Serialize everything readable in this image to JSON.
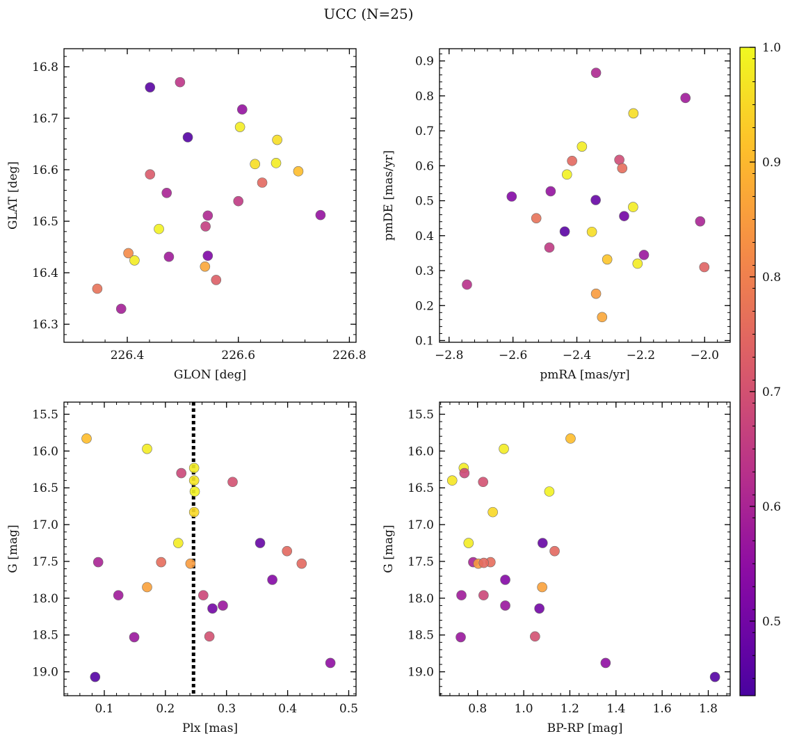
{
  "figure_title": "UCC (N=25)",
  "colorbar": {
    "min": 0.435,
    "max": 1.0,
    "ticks": [
      0.5,
      0.6,
      0.7,
      0.8,
      0.9,
      1.0
    ],
    "tick_labels": [
      "0.5",
      "0.6",
      "0.7",
      "0.8",
      "0.9",
      "1.0"
    ],
    "colormap": "plasma"
  },
  "chart_data": [
    {
      "type": "scatter",
      "xlabel": "GLON [deg]",
      "ylabel": "GLAT [deg]",
      "xlim": [
        226.286,
        226.812
      ],
      "ylim": [
        16.265,
        16.835
      ],
      "xticks": [
        226.4,
        226.6,
        226.8
      ],
      "xtick_labels": [
        "226.4",
        "226.6",
        "226.8"
      ],
      "yticks": [
        16.3,
        16.4,
        16.5,
        16.6,
        16.7,
        16.8
      ],
      "ytick_labels": [
        "16.3",
        "16.4",
        "16.5",
        "16.6",
        "16.7",
        "16.8"
      ],
      "points": [
        {
          "x": 226.441,
          "y": 16.76,
          "c": 0.46
        },
        {
          "x": 226.495,
          "y": 16.77,
          "c": 0.64
        },
        {
          "x": 226.607,
          "y": 16.717,
          "c": 0.56
        },
        {
          "x": 226.509,
          "y": 16.663,
          "c": 0.45
        },
        {
          "x": 226.603,
          "y": 16.683,
          "c": 0.98
        },
        {
          "x": 226.67,
          "y": 16.658,
          "c": 0.96
        },
        {
          "x": 226.63,
          "y": 16.611,
          "c": 0.96
        },
        {
          "x": 226.668,
          "y": 16.613,
          "c": 0.98
        },
        {
          "x": 226.708,
          "y": 16.597,
          "c": 0.91
        },
        {
          "x": 226.441,
          "y": 16.591,
          "c": 0.72
        },
        {
          "x": 226.643,
          "y": 16.575,
          "c": 0.75
        },
        {
          "x": 226.471,
          "y": 16.555,
          "c": 0.6
        },
        {
          "x": 226.6,
          "y": 16.539,
          "c": 0.65
        },
        {
          "x": 226.545,
          "y": 16.511,
          "c": 0.61
        },
        {
          "x": 226.748,
          "y": 16.512,
          "c": 0.56
        },
        {
          "x": 226.541,
          "y": 16.49,
          "c": 0.66
        },
        {
          "x": 226.457,
          "y": 16.485,
          "c": 0.99
        },
        {
          "x": 226.402,
          "y": 16.438,
          "c": 0.82
        },
        {
          "x": 226.545,
          "y": 16.433,
          "c": 0.52
        },
        {
          "x": 226.475,
          "y": 16.431,
          "c": 0.58
        },
        {
          "x": 226.413,
          "y": 16.424,
          "c": 0.98
        },
        {
          "x": 226.54,
          "y": 16.412,
          "c": 0.87
        },
        {
          "x": 226.56,
          "y": 16.386,
          "c": 0.73
        },
        {
          "x": 226.346,
          "y": 16.369,
          "c": 0.77
        },
        {
          "x": 226.389,
          "y": 16.33,
          "c": 0.59
        }
      ]
    },
    {
      "type": "scatter",
      "xlabel": "pmRA [mas/yr]",
      "ylabel": "pmDE [mas/yr]",
      "xlim": [
        -2.83,
        -1.92
      ],
      "ylim": [
        0.095,
        0.935
      ],
      "xticks": [
        -2.8,
        -2.6,
        -2.4,
        -2.2,
        -2.0
      ],
      "xtick_labels": [
        "−2.8",
        "−2.6",
        "−2.4",
        "−2.2",
        "−2.0"
      ],
      "yticks": [
        0.1,
        0.2,
        0.3,
        0.4,
        0.5,
        0.6,
        0.7,
        0.8,
        0.9
      ],
      "ytick_labels": [
        "0.1",
        "0.2",
        "0.3",
        "0.4",
        "0.5",
        "0.6",
        "0.7",
        "0.8",
        "0.9"
      ],
      "points": [
        {
          "x": -2.34,
          "y": 0.866,
          "c": 0.61
        },
        {
          "x": -2.06,
          "y": 0.794,
          "c": 0.58
        },
        {
          "x": -2.223,
          "y": 0.75,
          "c": 0.96
        },
        {
          "x": -2.384,
          "y": 0.655,
          "c": 0.98
        },
        {
          "x": -2.267,
          "y": 0.617,
          "c": 0.69
        },
        {
          "x": -2.415,
          "y": 0.614,
          "c": 0.75
        },
        {
          "x": -2.258,
          "y": 0.593,
          "c": 0.76
        },
        {
          "x": -2.431,
          "y": 0.575,
          "c": 0.99
        },
        {
          "x": -2.482,
          "y": 0.527,
          "c": 0.56
        },
        {
          "x": -2.604,
          "y": 0.512,
          "c": 0.53
        },
        {
          "x": -2.341,
          "y": 0.502,
          "c": 0.48
        },
        {
          "x": -2.224,
          "y": 0.482,
          "c": 0.98
        },
        {
          "x": -2.252,
          "y": 0.456,
          "c": 0.5
        },
        {
          "x": -2.527,
          "y": 0.45,
          "c": 0.77
        },
        {
          "x": -2.014,
          "y": 0.441,
          "c": 0.6
        },
        {
          "x": -2.438,
          "y": 0.412,
          "c": 0.46
        },
        {
          "x": -2.353,
          "y": 0.411,
          "c": 0.96
        },
        {
          "x": -2.486,
          "y": 0.366,
          "c": 0.65
        },
        {
          "x": -2.19,
          "y": 0.345,
          "c": 0.57
        },
        {
          "x": -2.305,
          "y": 0.332,
          "c": 0.92
        },
        {
          "x": -2.21,
          "y": 0.32,
          "c": 0.98
        },
        {
          "x": -2.001,
          "y": 0.31,
          "c": 0.74
        },
        {
          "x": -2.744,
          "y": 0.26,
          "c": 0.63
        },
        {
          "x": -2.34,
          "y": 0.234,
          "c": 0.85
        },
        {
          "x": -2.321,
          "y": 0.167,
          "c": 0.87
        }
      ]
    },
    {
      "type": "scatter",
      "xlabel": "Plx [mas]",
      "ylabel": "G [mag]",
      "xlim": [
        0.034,
        0.512
      ],
      "ylim": [
        19.325,
        15.335
      ],
      "y_inverted": true,
      "vline": 0.246,
      "xticks": [
        0.1,
        0.2,
        0.3,
        0.4,
        0.5
      ],
      "xtick_labels": [
        "0.1",
        "0.2",
        "0.3",
        "0.4",
        "0.5"
      ],
      "yticks": [
        15.5,
        16.0,
        16.5,
        17.0,
        17.5,
        18.0,
        18.5,
        19.0
      ],
      "ytick_labels": [
        "15.5",
        "16.0",
        "16.5",
        "17.0",
        "17.5",
        "18.0",
        "18.5",
        "19.0"
      ],
      "points": [
        {
          "x": 0.071,
          "y": 15.83,
          "c": 0.91
        },
        {
          "x": 0.17,
          "y": 15.97,
          "c": 0.98
        },
        {
          "x": 0.247,
          "y": 16.23,
          "c": 0.98
        },
        {
          "x": 0.226,
          "y": 16.3,
          "c": 0.68
        },
        {
          "x": 0.247,
          "y": 16.4,
          "c": 0.97
        },
        {
          "x": 0.31,
          "y": 16.42,
          "c": 0.7
        },
        {
          "x": 0.248,
          "y": 16.55,
          "c": 0.99
        },
        {
          "x": 0.247,
          "y": 16.83,
          "c": 0.95
        },
        {
          "x": 0.221,
          "y": 17.25,
          "c": 0.98
        },
        {
          "x": 0.355,
          "y": 17.25,
          "c": 0.48
        },
        {
          "x": 0.399,
          "y": 17.36,
          "c": 0.75
        },
        {
          "x": 0.09,
          "y": 17.51,
          "c": 0.6
        },
        {
          "x": 0.193,
          "y": 17.51,
          "c": 0.76
        },
        {
          "x": 0.241,
          "y": 17.53,
          "c": 0.85
        },
        {
          "x": 0.423,
          "y": 17.53,
          "c": 0.75
        },
        {
          "x": 0.375,
          "y": 17.75,
          "c": 0.53
        },
        {
          "x": 0.17,
          "y": 17.85,
          "c": 0.86
        },
        {
          "x": 0.123,
          "y": 17.96,
          "c": 0.58
        },
        {
          "x": 0.262,
          "y": 17.96,
          "c": 0.68
        },
        {
          "x": 0.294,
          "y": 18.1,
          "c": 0.57
        },
        {
          "x": 0.277,
          "y": 18.14,
          "c": 0.5
        },
        {
          "x": 0.149,
          "y": 18.53,
          "c": 0.57
        },
        {
          "x": 0.272,
          "y": 18.52,
          "c": 0.7
        },
        {
          "x": 0.47,
          "y": 18.88,
          "c": 0.55
        },
        {
          "x": 0.085,
          "y": 19.07,
          "c": 0.45
        }
      ]
    },
    {
      "type": "scatter",
      "xlabel": "BP-RP [mag]",
      "ylabel": "G [mag]",
      "xlim": [
        0.635,
        1.895
      ],
      "ylim": [
        19.325,
        15.335
      ],
      "y_inverted": true,
      "xticks": [
        0.8,
        1.0,
        1.2,
        1.4,
        1.6,
        1.8
      ],
      "xtick_labels": [
        "0.8",
        "1.0",
        "1.2",
        "1.4",
        "1.6",
        "1.8"
      ],
      "yticks": [
        15.5,
        16.0,
        16.5,
        17.0,
        17.5,
        18.0,
        18.5,
        19.0
      ],
      "ytick_labels": [
        "15.5",
        "16.0",
        "16.5",
        "17.0",
        "17.5",
        "18.0",
        "18.5",
        "19.0"
      ],
      "points": [
        {
          "x": 1.203,
          "y": 15.83,
          "c": 0.91
        },
        {
          "x": 0.914,
          "y": 15.97,
          "c": 0.98
        },
        {
          "x": 0.74,
          "y": 16.23,
          "c": 0.98
        },
        {
          "x": 0.743,
          "y": 16.3,
          "c": 0.68
        },
        {
          "x": 0.69,
          "y": 16.4,
          "c": 0.97
        },
        {
          "x": 0.824,
          "y": 16.42,
          "c": 0.7
        },
        {
          "x": 1.111,
          "y": 16.55,
          "c": 0.99
        },
        {
          "x": 0.866,
          "y": 16.83,
          "c": 0.95
        },
        {
          "x": 0.761,
          "y": 17.25,
          "c": 0.98
        },
        {
          "x": 1.082,
          "y": 17.25,
          "c": 0.48
        },
        {
          "x": 1.134,
          "y": 17.36,
          "c": 0.75
        },
        {
          "x": 0.781,
          "y": 17.51,
          "c": 0.6
        },
        {
          "x": 0.856,
          "y": 17.51,
          "c": 0.76
        },
        {
          "x": 0.803,
          "y": 17.53,
          "c": 0.85
        },
        {
          "x": 0.827,
          "y": 17.52,
          "c": 0.75
        },
        {
          "x": 0.92,
          "y": 17.75,
          "c": 0.53
        },
        {
          "x": 1.08,
          "y": 17.85,
          "c": 0.86
        },
        {
          "x": 0.73,
          "y": 17.96,
          "c": 0.58
        },
        {
          "x": 0.826,
          "y": 17.96,
          "c": 0.68
        },
        {
          "x": 0.92,
          "y": 18.1,
          "c": 0.57
        },
        {
          "x": 1.068,
          "y": 18.14,
          "c": 0.5
        },
        {
          "x": 0.727,
          "y": 18.53,
          "c": 0.57
        },
        {
          "x": 1.049,
          "y": 18.52,
          "c": 0.7
        },
        {
          "x": 1.355,
          "y": 18.88,
          "c": 0.55
        },
        {
          "x": 1.829,
          "y": 19.07,
          "c": 0.45
        }
      ]
    }
  ]
}
